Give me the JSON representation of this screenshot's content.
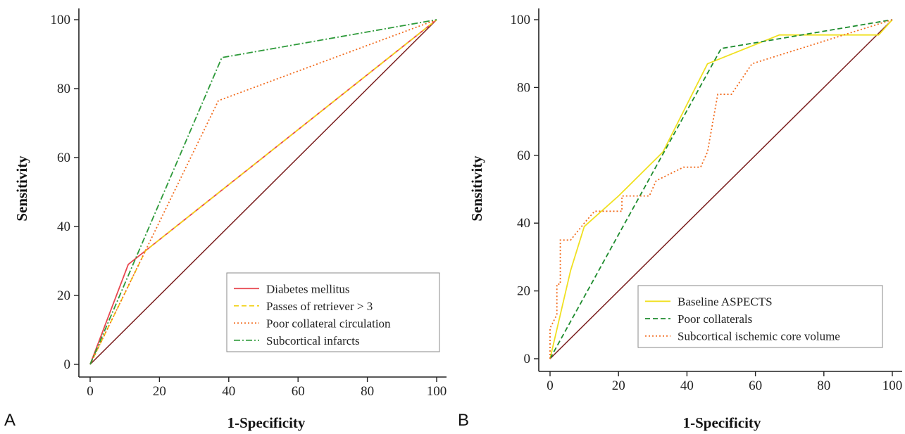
{
  "panels": {
    "a": {
      "label": "A"
    },
    "b": {
      "label": "B"
    }
  },
  "chart_data": [
    {
      "type": "line",
      "panel": "A",
      "xlabel": "1-Specificity",
      "ylabel": "Sensitivity",
      "xlim": [
        0,
        100
      ],
      "ylim": [
        0,
        100
      ],
      "xticks": [
        "0",
        "20",
        "40",
        "60",
        "80",
        "100"
      ],
      "yticks": [
        "0",
        "20",
        "40",
        "60",
        "80",
        "100"
      ],
      "legend_position": "bottom-right",
      "reference_line": {
        "color": "#7b1f1f",
        "points": [
          [
            0,
            0
          ],
          [
            100,
            100
          ]
        ]
      },
      "series": [
        {
          "name": "Diabetes mellitus",
          "color": "#e8474f",
          "dash": "solid",
          "points": [
            [
              0,
              0
            ],
            [
              11,
              29
            ],
            [
              100,
              100
            ]
          ]
        },
        {
          "name": "Passes of retriever > 3",
          "color": "#f2d21a",
          "dash": "dash",
          "points": [
            [
              0,
              0
            ],
            [
              16,
              33
            ],
            [
              100,
              100
            ]
          ]
        },
        {
          "name": "Poor collateral circulation",
          "color": "#f26b1d",
          "dash": "dot",
          "points": [
            [
              0,
              0
            ],
            [
              37,
              76.5
            ],
            [
              100,
              100
            ]
          ]
        },
        {
          "name": "Subcortical infarcts",
          "color": "#2e9a3a",
          "dash": "dashdot",
          "points": [
            [
              0,
              0
            ],
            [
              38,
              89
            ],
            [
              100,
              100
            ]
          ]
        }
      ]
    },
    {
      "type": "line",
      "panel": "B",
      "xlabel": "1-Specificity",
      "ylabel": "Sensitivity",
      "xlim": [
        0,
        100
      ],
      "ylim": [
        0,
        100
      ],
      "xticks": [
        "0",
        "20",
        "40",
        "60",
        "80",
        "100"
      ],
      "yticks": [
        "0",
        "20",
        "40",
        "60",
        "80",
        "100"
      ],
      "legend_position": "bottom-right",
      "reference_line": {
        "color": "#7b1f1f",
        "points": [
          [
            0,
            0
          ],
          [
            100,
            100
          ]
        ]
      },
      "series": [
        {
          "name": "Baseline ASPECTS",
          "color": "#f0e020",
          "dash": "solid",
          "points": [
            [
              0,
              0
            ],
            [
              3,
              13
            ],
            [
              6,
              26
            ],
            [
              10,
              39
            ],
            [
              20,
              48
            ],
            [
              33,
              61
            ],
            [
              46,
              87
            ],
            [
              67,
              95.5
            ],
            [
              96,
              95.5
            ],
            [
              100,
              100
            ]
          ]
        },
        {
          "name": "Poor collaterals",
          "color": "#1e8c2e",
          "dash": "dash",
          "points": [
            [
              0,
              0
            ],
            [
              50,
              91.5
            ],
            [
              100,
              100
            ]
          ]
        },
        {
          "name": "Subcortical ischemic core volume",
          "color": "#f26b1d",
          "dash": "dot",
          "points": [
            [
              0,
              0
            ],
            [
              0,
              9
            ],
            [
              2,
              13
            ],
            [
              2,
              22
            ],
            [
              3,
              22
            ],
            [
              3,
              35
            ],
            [
              6,
              35
            ],
            [
              10,
              40
            ],
            [
              13,
              43.5
            ],
            [
              21,
              43.5
            ],
            [
              21,
              48
            ],
            [
              29,
              48
            ],
            [
              31,
              52.5
            ],
            [
              39,
              56.5
            ],
            [
              44,
              56.5
            ],
            [
              46,
              61
            ],
            [
              49,
              78
            ],
            [
              53,
              78
            ],
            [
              59,
              87
            ],
            [
              100,
              100
            ]
          ]
        }
      ]
    }
  ]
}
